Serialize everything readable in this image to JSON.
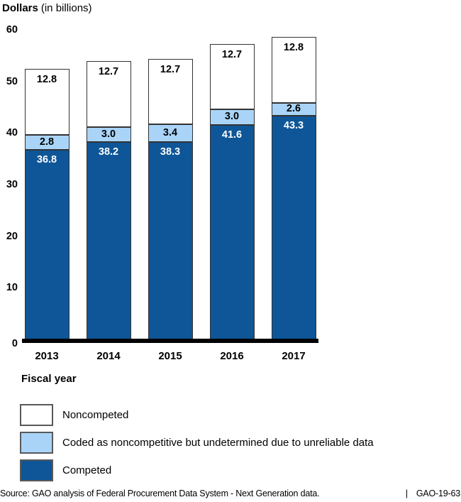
{
  "figure": {
    "title_main": "Dollars",
    "title_sub": "(in billions)",
    "xlabel": "Fiscal year",
    "source_text": "Source: GAO analysis of Federal Procurement Data System - Next Generation data.",
    "source_separator": "|",
    "source_report": "GAO-19-63"
  },
  "chart_data": {
    "type": "bar",
    "stacked": true,
    "title": "Dollars (in billions)",
    "xlabel": "Fiscal year",
    "ylim": [
      0,
      60
    ],
    "yticks": [
      0,
      10,
      20,
      30,
      40,
      50,
      60
    ],
    "grid": false,
    "legend_position": "bottom-left",
    "categories": [
      "2013",
      "2014",
      "2015",
      "2016",
      "2017"
    ],
    "series": [
      {
        "name": "Competed",
        "color": "#0E5697",
        "label_color": "#FFFFFF",
        "values": [
          36.8,
          38.2,
          38.3,
          41.6,
          43.3
        ]
      },
      {
        "name": "Coded as noncompetitive but undetermined due to unreliable data",
        "color": "#A9D4F7",
        "label_color": "#000000",
        "values": [
          2.8,
          3.0,
          3.4,
          3.0,
          2.6
        ]
      },
      {
        "name": "Noncompeted",
        "color": "#FFFFFF",
        "label_color": "#000000",
        "values": [
          12.8,
          12.7,
          12.7,
          12.7,
          12.8
        ]
      }
    ],
    "legend": [
      {
        "label": "Noncompeted",
        "color": "#FFFFFF"
      },
      {
        "label": "Coded as noncompetitive but undetermined due to unreliable data",
        "color": "#A9D4F7"
      },
      {
        "label": "Competed",
        "color": "#0E5697"
      }
    ]
  }
}
